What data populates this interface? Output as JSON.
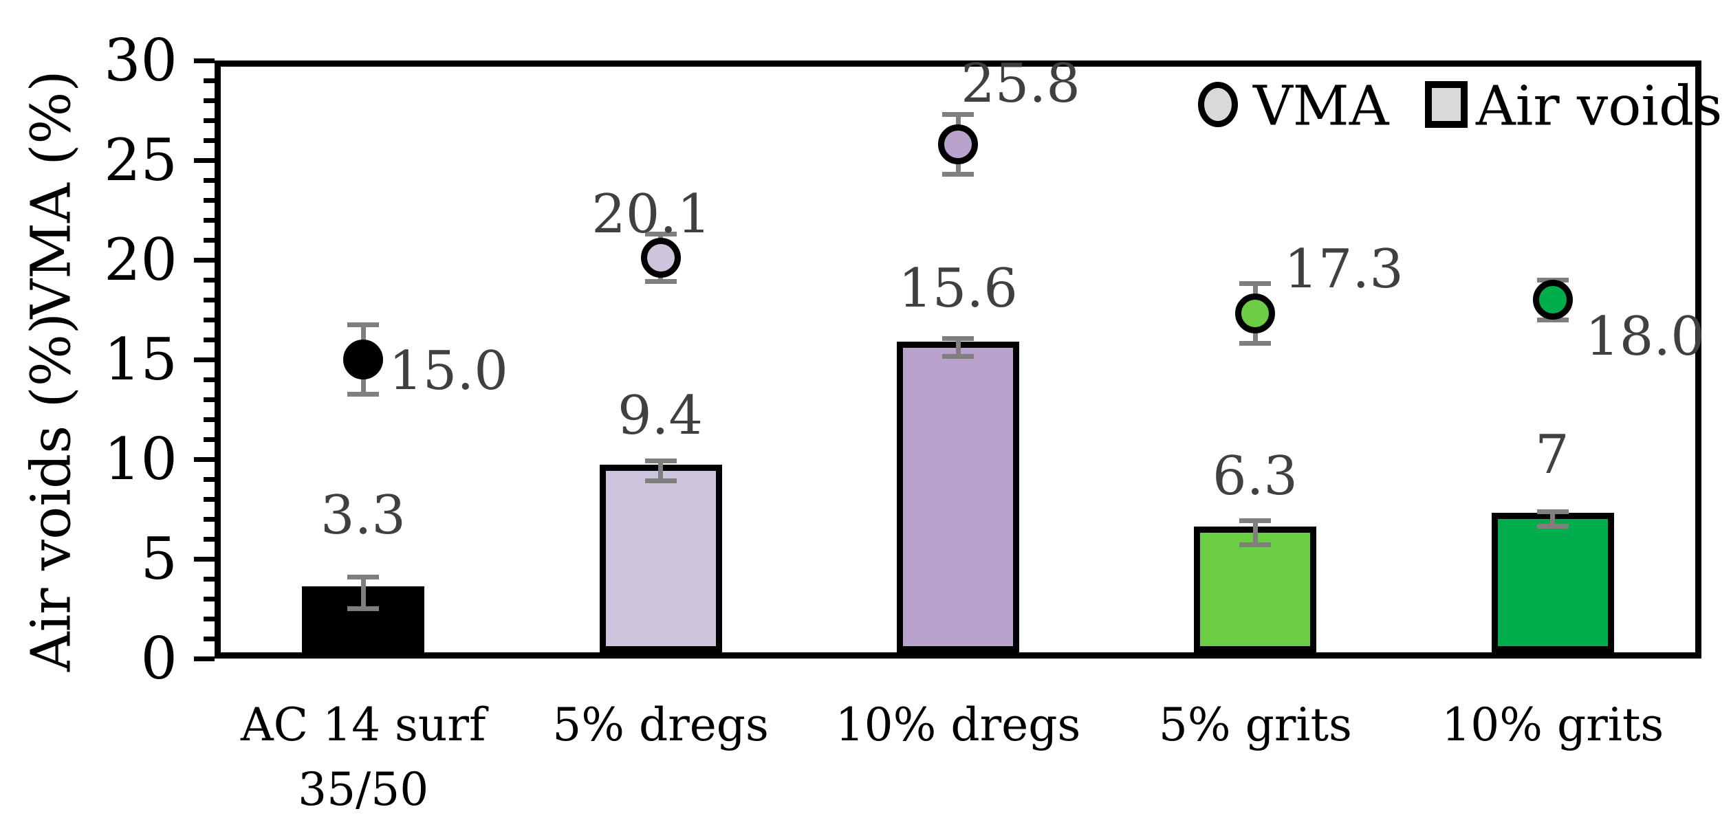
{
  "chart_data": {
    "type": "bar",
    "subtype": "grouped bar with scatter overlay (dual-measure mix design chart)",
    "categories": [
      "AC 14 surf 35/50",
      "5% dregs",
      "10% dregs",
      "5% grits",
      "10% grits"
    ],
    "categories_lines": [
      [
        "AC 14 surf",
        "35/50"
      ],
      [
        "5% dregs"
      ],
      [
        "10% dregs"
      ],
      [
        "5% grits"
      ],
      [
        "10% grits"
      ]
    ],
    "series": [
      {
        "name": "Air voids",
        "marker": "bar",
        "values": [
          3.3,
          9.4,
          15.6,
          6.3,
          7
        ],
        "labels": [
          "3.3",
          "9.4",
          "15.6",
          "6.3",
          "7"
        ],
        "errors": [
          0.8,
          0.5,
          0.45,
          0.6,
          0.35
        ],
        "colors": [
          "#000000",
          "#cfc4dd",
          "#b9a3cc",
          "#6bce45",
          "#00ad4d"
        ]
      },
      {
        "name": "VMA",
        "marker": "circle",
        "values": [
          15.0,
          20.1,
          25.8,
          17.3,
          18.0
        ],
        "labels": [
          "15.0",
          "20.1",
          "25.8",
          "17.3",
          "18.0"
        ],
        "errors": [
          1.75,
          1.2,
          1.5,
          1.5,
          1.0
        ],
        "colors": [
          "#000000",
          "#cfc4dd",
          "#b9a3cc",
          "#6bce45",
          "#00ad4d"
        ]
      }
    ],
    "ylabel_top": "VMA (%)",
    "ylabel_bottom": "Air voids (%)",
    "xlabel": "",
    "title": "",
    "ylim": [
      0,
      30
    ],
    "ytick_values": [
      0,
      5,
      10,
      15,
      20,
      25,
      30
    ],
    "ytick_labels": [
      "0",
      "5",
      "10",
      "15",
      "20",
      "25",
      "30"
    ],
    "minor_tick_step": 1,
    "grid": "off",
    "legend_position": "top-right-inside",
    "error_bar_color": "#7f7f7f",
    "data_label_color": "#404040",
    "legend_marker_fill": "#d9d9d9"
  },
  "legend": {
    "vma_label": "VMA",
    "air_voids_label": "Air voids"
  },
  "axes": {
    "ylabel_top": "VMA (%)",
    "ylabel_bottom": "Air voids (%)"
  }
}
